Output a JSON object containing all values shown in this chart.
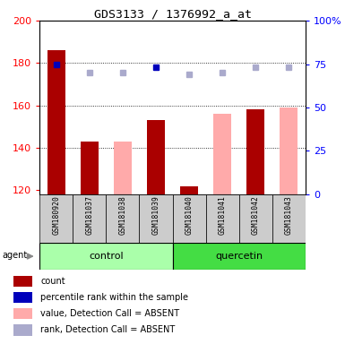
{
  "title": "GDS3133 / 1376992_a_at",
  "samples": [
    "GSM180920",
    "GSM181037",
    "GSM181038",
    "GSM181039",
    "GSM181040",
    "GSM181041",
    "GSM181042",
    "GSM181043"
  ],
  "bar_values": [
    186,
    143,
    null,
    153,
    122,
    null,
    158,
    null
  ],
  "bar_absent_values": [
    null,
    null,
    143,
    null,
    null,
    156,
    null,
    159
  ],
  "rank_values": [
    75,
    null,
    null,
    73,
    null,
    null,
    null,
    null
  ],
  "rank_absent_values": [
    null,
    70,
    70,
    null,
    69,
    70,
    73,
    73
  ],
  "ylim_left": [
    118,
    200
  ],
  "ylim_right": [
    0,
    100
  ],
  "yticks_left": [
    120,
    140,
    160,
    180,
    200
  ],
  "yticks_right": [
    0,
    25,
    50,
    75,
    100
  ],
  "bar_color": "#aa0000",
  "bar_absent_color": "#ffaaaa",
  "rank_color": "#0000bb",
  "rank_absent_color": "#aaaacc",
  "control_bg_light": "#aaffaa",
  "control_bg": "#aaffaa",
  "quercetin_bg": "#44dd44",
  "sample_bg": "#cccccc",
  "legend_items": [
    {
      "label": "count",
      "color": "#aa0000"
    },
    {
      "label": "percentile rank within the sample",
      "color": "#0000bb"
    },
    {
      "label": "value, Detection Call = ABSENT",
      "color": "#ffaaaa"
    },
    {
      "label": "rank, Detection Call = ABSENT",
      "color": "#aaaacc"
    }
  ]
}
